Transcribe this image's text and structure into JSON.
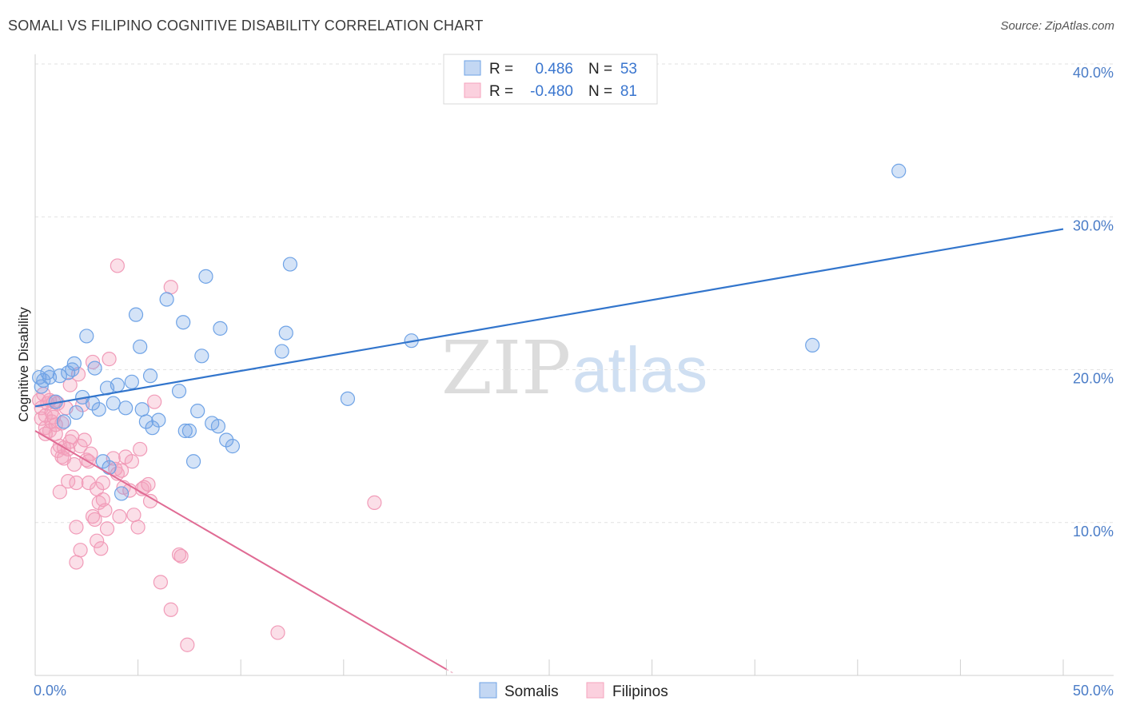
{
  "header": {
    "title": "SOMALI VS FILIPINO COGNITIVE DISABILITY CORRELATION CHART",
    "source": "Source: ZipAtlas.com"
  },
  "legend": {
    "r_label": "R =",
    "n_label": "N =",
    "somali": {
      "r": "0.486",
      "n": "53"
    },
    "filipino": {
      "r": "-0.480",
      "n": "81"
    }
  },
  "watermark": {
    "zip": "ZIP",
    "atlas": "atlas"
  },
  "chart_data": {
    "type": "scatter",
    "title": "SOMALI VS FILIPINO COGNITIVE DISABILITY CORRELATION CHART",
    "ylabel": "Cognitive Disability",
    "xlabel": "",
    "xlim": [
      0,
      50
    ],
    "ylim": [
      0,
      40
    ],
    "x_tick_labels": [
      "0.0%",
      "50.0%"
    ],
    "y_ticks": [
      10,
      20,
      30,
      40
    ],
    "y_tick_labels": [
      "10.0%",
      "20.0%",
      "30.0%",
      "40.0%"
    ],
    "grid": "horizontal dashed",
    "legend_position": "top-center",
    "colors": {
      "somali": "#6fa3e6",
      "somali_line": "#3275cc",
      "filipino": "#f4a3bd",
      "filipino_line": "#e06b94"
    },
    "series": [
      {
        "name": "Somalis",
        "trend": {
          "x": [
            0,
            50
          ],
          "y": [
            17.6,
            29.2
          ]
        },
        "points": [
          [
            0.2,
            19.5
          ],
          [
            0.3,
            18.9
          ],
          [
            0.4,
            19.3
          ],
          [
            0.6,
            19.8
          ],
          [
            0.7,
            19.5
          ],
          [
            1.0,
            17.9
          ],
          [
            1.2,
            19.6
          ],
          [
            1.4,
            16.6
          ],
          [
            1.6,
            19.8
          ],
          [
            1.8,
            20.0
          ],
          [
            1.9,
            20.4
          ],
          [
            2.0,
            17.2
          ],
          [
            2.3,
            18.2
          ],
          [
            2.5,
            22.2
          ],
          [
            2.8,
            17.8
          ],
          [
            2.9,
            20.1
          ],
          [
            3.1,
            17.4
          ],
          [
            3.3,
            14.0
          ],
          [
            3.5,
            18.8
          ],
          [
            3.6,
            13.6
          ],
          [
            3.8,
            17.8
          ],
          [
            4.0,
            19.0
          ],
          [
            4.2,
            11.9
          ],
          [
            4.4,
            17.5
          ],
          [
            4.7,
            19.2
          ],
          [
            4.9,
            23.6
          ],
          [
            5.1,
            21.5
          ],
          [
            5.2,
            17.4
          ],
          [
            5.4,
            16.6
          ],
          [
            5.6,
            19.6
          ],
          [
            5.7,
            16.2
          ],
          [
            6.0,
            16.7
          ],
          [
            6.4,
            24.6
          ],
          [
            7.0,
            18.6
          ],
          [
            7.2,
            23.1
          ],
          [
            7.3,
            16.0
          ],
          [
            7.5,
            16.0
          ],
          [
            7.7,
            14.0
          ],
          [
            7.9,
            17.3
          ],
          [
            8.1,
            20.9
          ],
          [
            8.3,
            26.1
          ],
          [
            8.6,
            16.5
          ],
          [
            8.9,
            16.3
          ],
          [
            9.0,
            22.7
          ],
          [
            9.3,
            15.4
          ],
          [
            9.6,
            15.0
          ],
          [
            12.0,
            21.2
          ],
          [
            12.2,
            22.4
          ],
          [
            12.4,
            26.9
          ],
          [
            15.2,
            18.1
          ],
          [
            18.3,
            21.9
          ],
          [
            37.8,
            21.6
          ],
          [
            42.0,
            33.0
          ]
        ]
      },
      {
        "name": "Filipinos",
        "trend": {
          "x": [
            0,
            20
          ],
          "y": [
            16.0,
            0.4
          ]
        },
        "points": [
          [
            0.2,
            18.0
          ],
          [
            0.3,
            17.5
          ],
          [
            0.3,
            16.8
          ],
          [
            0.4,
            18.4
          ],
          [
            0.5,
            17.0
          ],
          [
            0.5,
            16.2
          ],
          [
            0.6,
            17.8
          ],
          [
            0.7,
            18.0
          ],
          [
            0.7,
            16.0
          ],
          [
            0.8,
            17.2
          ],
          [
            0.8,
            16.6
          ],
          [
            0.9,
            16.9
          ],
          [
            1.0,
            15.8
          ],
          [
            1.0,
            16.4
          ],
          [
            1.1,
            14.7
          ],
          [
            1.1,
            17.8
          ],
          [
            1.2,
            15.0
          ],
          [
            1.2,
            12.0
          ],
          [
            1.3,
            14.3
          ],
          [
            1.4,
            14.9
          ],
          [
            1.4,
            14.2
          ],
          [
            1.5,
            17.5
          ],
          [
            1.6,
            14.8
          ],
          [
            1.6,
            12.7
          ],
          [
            1.7,
            19.0
          ],
          [
            1.7,
            15.3
          ],
          [
            1.8,
            15.6
          ],
          [
            1.9,
            13.8
          ],
          [
            2.0,
            9.7
          ],
          [
            2.0,
            12.6
          ],
          [
            2.0,
            7.4
          ],
          [
            2.1,
            19.7
          ],
          [
            2.2,
            8.2
          ],
          [
            2.2,
            15.0
          ],
          [
            2.3,
            17.7
          ],
          [
            2.4,
            15.4
          ],
          [
            2.5,
            14.1
          ],
          [
            2.6,
            12.6
          ],
          [
            2.7,
            14.5
          ],
          [
            2.8,
            10.4
          ],
          [
            2.8,
            20.5
          ],
          [
            2.9,
            10.2
          ],
          [
            3.0,
            12.2
          ],
          [
            3.0,
            8.8
          ],
          [
            3.1,
            11.3
          ],
          [
            3.2,
            8.3
          ],
          [
            3.3,
            12.6
          ],
          [
            3.3,
            11.5
          ],
          [
            3.4,
            10.8
          ],
          [
            3.5,
            9.6
          ],
          [
            3.6,
            20.7
          ],
          [
            3.8,
            14.2
          ],
          [
            3.9,
            13.5
          ],
          [
            4.0,
            13.2
          ],
          [
            4.0,
            26.8
          ],
          [
            4.1,
            10.4
          ],
          [
            4.2,
            13.4
          ],
          [
            4.3,
            12.3
          ],
          [
            4.4,
            14.3
          ],
          [
            4.6,
            12.1
          ],
          [
            4.7,
            14.0
          ],
          [
            4.8,
            10.5
          ],
          [
            5.0,
            9.7
          ],
          [
            5.1,
            14.8
          ],
          [
            5.2,
            12.2
          ],
          [
            5.3,
            12.3
          ],
          [
            5.5,
            12.5
          ],
          [
            5.6,
            11.4
          ],
          [
            5.8,
            17.9
          ],
          [
            6.1,
            6.1
          ],
          [
            6.6,
            4.3
          ],
          [
            6.6,
            25.4
          ],
          [
            7.0,
            7.9
          ],
          [
            7.1,
            7.8
          ],
          [
            7.4,
            2.0
          ],
          [
            11.8,
            2.8
          ],
          [
            16.5,
            11.3
          ],
          [
            0.5,
            15.8
          ],
          [
            0.9,
            17.9
          ],
          [
            1.3,
            16.5
          ],
          [
            2.6,
            14.0
          ]
        ]
      }
    ]
  }
}
